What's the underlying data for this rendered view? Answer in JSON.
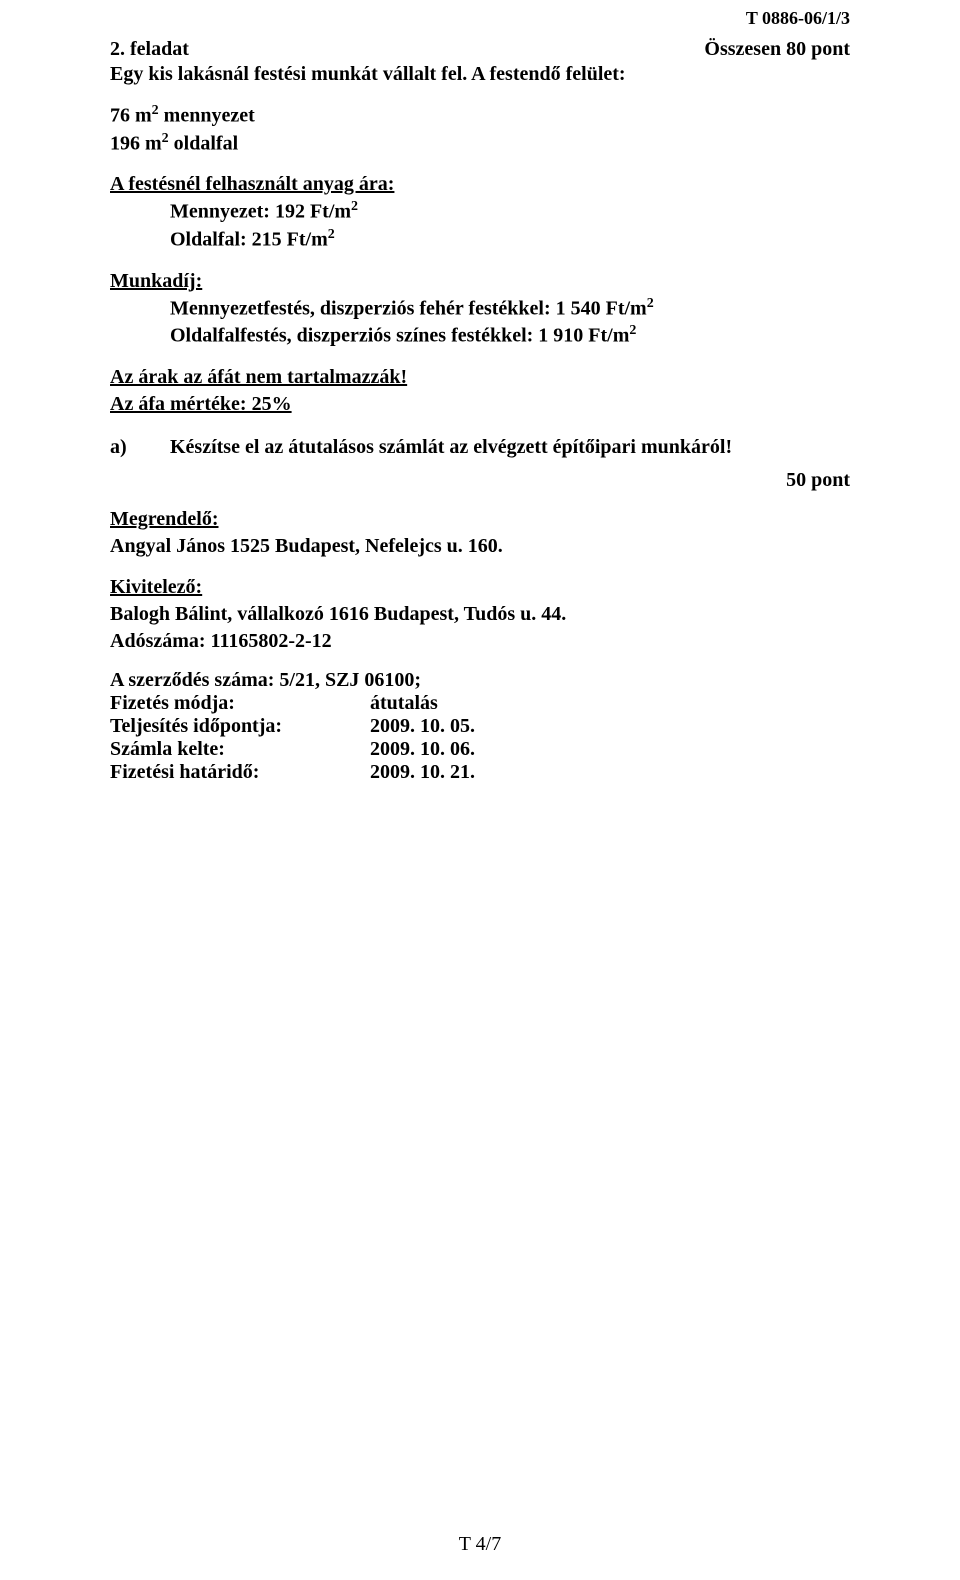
{
  "header": {
    "doc_code": "T 0886-06/1/3"
  },
  "task": {
    "number": "2. feladat",
    "points": "Összesen 80 pont",
    "intro_line1": "Egy kis lakásnál festési munkát vállalt fel. A festendő felület:"
  },
  "areas": {
    "ceiling_qty": "76 m",
    "ceiling_label": " mennyezet",
    "wall_qty": "196 m",
    "wall_label": " oldalfal"
  },
  "material": {
    "heading": "A festésnél felhasznált anyag ára:",
    "ceiling_price_prefix": "Mennyezet: 192 Ft/m",
    "wall_price_prefix": "Oldalfal: 215 Ft/m"
  },
  "labor": {
    "heading": "Munkadíj:",
    "ceiling_prefix": "Mennyezetfestés, diszperziós fehér festékkel: 1 540 Ft/m",
    "wall_prefix": "Oldalfalfestés, diszperziós színes festékkel: 1 910 Ft/m"
  },
  "vat": {
    "line1": "Az árak az áfát nem tartalmazzák!",
    "line2": "Az áfa mértéke: 25%"
  },
  "subtask": {
    "label": "a)",
    "text": "Készítse el az átutalásos számlát az elvégzett építőipari munkáról!",
    "points": "50 pont"
  },
  "client": {
    "heading": "Megrendelő:",
    "line": "Angyal János 1525 Budapest, Nefelejcs u. 160."
  },
  "contractor": {
    "heading": "Kivitelező:",
    "line1": "Balogh Bálint, vállalkozó 1616 Budapest, Tudós u. 44.",
    "line2": "Adószáma: 11165802-2-12"
  },
  "contract": {
    "number_line": "A szerződés száma:  5/21, SZJ 06100;",
    "rows": [
      {
        "k": "Fizetés módja:",
        "v": "átutalás"
      },
      {
        "k": "Teljesítés időpontja:",
        "v": "2009. 10. 05."
      },
      {
        "k": "Számla kelte:",
        "v": "2009. 10. 06."
      },
      {
        "k": "Fizetési határidő:",
        "v": "2009. 10. 21."
      }
    ]
  },
  "footer": {
    "page": "T 4/7"
  }
}
